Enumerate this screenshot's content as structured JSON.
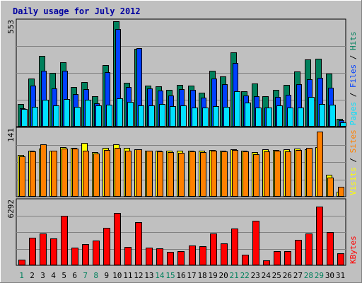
{
  "chart_data": {
    "type": "bar",
    "title": "Daily usage for July 2012",
    "categories": [
      "1",
      "2",
      "3",
      "4",
      "5",
      "6",
      "7",
      "8",
      "9",
      "10",
      "11",
      "12",
      "13",
      "14",
      "15",
      "16",
      "17",
      "18",
      "19",
      "20",
      "21",
      "22",
      "23",
      "24",
      "25",
      "26",
      "27",
      "28",
      "29",
      "30",
      "31"
    ],
    "weekend_days": [
      "1",
      "7",
      "8",
      "14",
      "15",
      "21",
      "22",
      "28",
      "29"
    ],
    "panels": [
      {
        "id": "hits_files_pages",
        "max_label": "553",
        "ylim": [
          0,
          553
        ],
        "series": [
          {
            "name": "Hits",
            "color": "#00805c",
            "values": [
              119,
              252,
              368,
              282,
              334,
              208,
              234,
              159,
              320,
              548,
              228,
              405,
              212,
              209,
              193,
              216,
              212,
              176,
              293,
              263,
              386,
              183,
              224,
              159,
              193,
              216,
              287,
              352,
              353,
              275,
              40
            ]
          },
          {
            "name": "Files",
            "color": "#0040ff",
            "values": [
              97,
              213,
              293,
              199,
              291,
              171,
              197,
              120,
              284,
              508,
              206,
              408,
              198,
              188,
              164,
              197,
              191,
              152,
              251,
              221,
              331,
              164,
              159,
              101,
              156,
              166,
              223,
              247,
              255,
              201,
              32
            ]
          },
          {
            "name": "Pages",
            "color": "#00e0ff",
            "values": [
              93,
              105,
              140,
              112,
              143,
              105,
              140,
              110,
              115,
              146,
              129,
              112,
              111,
              119,
              108,
              109,
              100,
              99,
              106,
              104,
              183,
              127,
              100,
              100,
              110,
              98,
              101,
              153,
              117,
              115,
              21
            ]
          }
        ],
        "axis_titles": [
          {
            "text": "Hits",
            "color": "#00805c"
          },
          {
            "text": "Files",
            "color": "#0040ff"
          },
          {
            "text": "Pages",
            "color": "#00e0ff"
          }
        ]
      },
      {
        "id": "visits_sites",
        "max_label": "141",
        "ylim": [
          0,
          141
        ],
        "series": [
          {
            "name": "Visits",
            "color": "#ffff00",
            "values": [
              86,
              95,
              100,
              96,
              103,
              101,
              111,
              92,
              101,
              108,
              102,
              98,
              96,
              96,
              96,
              95,
              95,
              95,
              97,
              96,
              98,
              95,
              92,
              98,
              97,
              98,
              100,
              98,
              103,
              45,
              10
            ]
          },
          {
            "name": "Sites",
            "color": "#ff8000",
            "values": [
              84,
              94,
              108,
              95,
              100,
              100,
              96,
              89,
              97,
              101,
              96,
              98,
              95,
              94,
              93,
              91,
              94,
              92,
              95,
              94,
              97,
              94,
              88,
              94,
              95,
              94,
              97,
              102,
              135,
              40,
              21
            ]
          }
        ],
        "axis_titles": [
          {
            "text": "Sites",
            "color": "#ff8000"
          },
          {
            "text": "Visits",
            "color": "#ffff00"
          }
        ]
      },
      {
        "id": "kbytes",
        "max_label": "6292",
        "ylim": [
          0,
          6292
        ],
        "series": [
          {
            "name": "KBytes",
            "color": "#ff0000",
            "values": [
              530,
              2700,
              3100,
              2630,
              4760,
              1730,
              2040,
              2420,
              3630,
              5050,
              1810,
              4170,
              1740,
              1630,
              1320,
              1360,
              1930,
              1820,
              3060,
              2140,
              3550,
              1020,
              4300,
              460,
              1380,
              1350,
              2430,
              3100,
              5660,
              3190,
              1190
            ]
          }
        ],
        "axis_titles": [
          {
            "text": "KBytes",
            "color": "#ff0000"
          }
        ]
      }
    ],
    "grid": true
  }
}
